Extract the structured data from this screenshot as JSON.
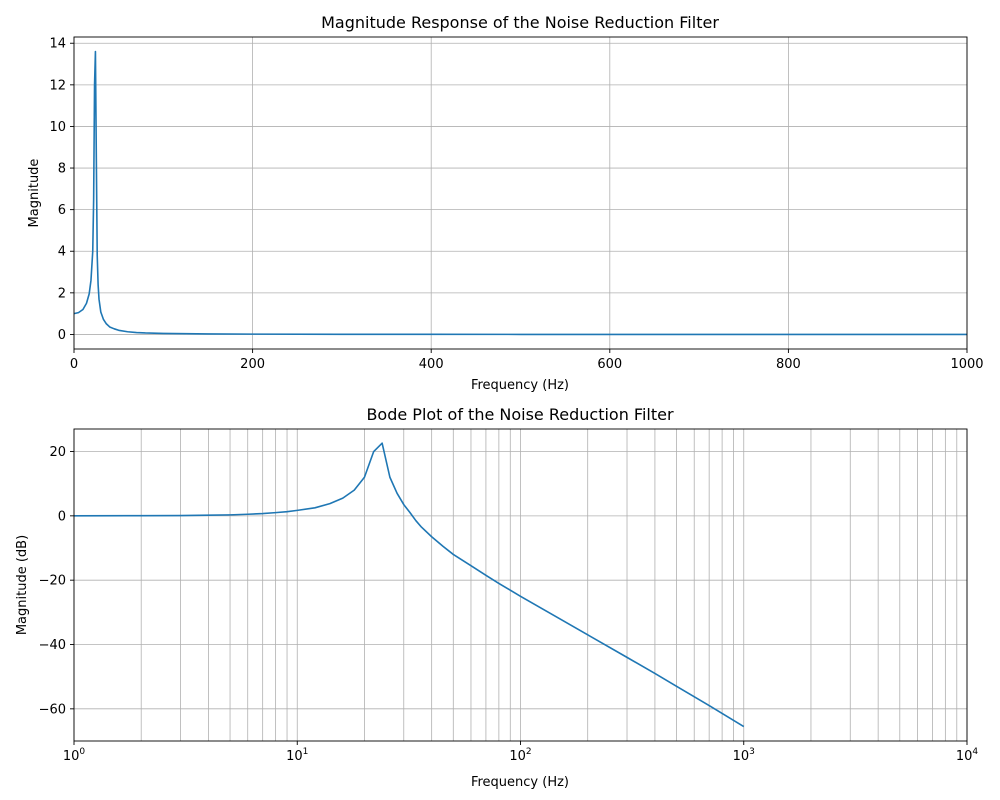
{
  "chart_data": [
    {
      "type": "line",
      "title": "Magnitude Response of the Noise Reduction Filter",
      "xlabel": "Frequency (Hz)",
      "ylabel": "Magnitude",
      "xscale": "linear",
      "xlim": [
        0,
        1000
      ],
      "ylim": [
        -0.7,
        14.3
      ],
      "xticks": [
        0,
        200,
        400,
        600,
        800,
        1000
      ],
      "xtick_labels": [
        "0",
        "200",
        "400",
        "600",
        "800",
        "1000"
      ],
      "yticks": [
        0,
        2,
        4,
        6,
        8,
        10,
        12,
        14
      ],
      "ytick_labels": [
        "0",
        "2",
        "4",
        "6",
        "8",
        "10",
        "12",
        "14"
      ],
      "grid": true,
      "color": "#1f77b4",
      "series": [
        {
          "x": [
            0,
            5,
            10,
            14,
            17,
            19,
            21,
            22,
            23,
            24,
            25,
            26,
            27,
            28,
            30,
            33,
            36,
            40,
            45,
            50,
            60,
            70,
            80,
            100,
            150,
            200,
            300,
            400,
            500,
            600,
            700,
            800,
            900,
            1000
          ],
          "values": [
            1.0,
            1.05,
            1.2,
            1.5,
            1.95,
            2.6,
            4.0,
            6.5,
            12.0,
            13.6,
            8.5,
            3.8,
            2.4,
            1.7,
            1.08,
            0.72,
            0.52,
            0.36,
            0.27,
            0.2,
            0.13,
            0.09,
            0.07,
            0.05,
            0.025,
            0.015,
            0.007,
            0.004,
            0.0025,
            0.0017,
            0.0013,
            0.001,
            0.0008,
            0.0006
          ]
        }
      ]
    },
    {
      "type": "line",
      "title": "Bode Plot of the Noise Reduction Filter",
      "xlabel": "Frequency (Hz)",
      "ylabel": "Magnitude (dB)",
      "xscale": "log",
      "xlim": [
        1,
        10000
      ],
      "ylim": [
        -70,
        27
      ],
      "xticks": [
        1,
        10,
        100,
        1000,
        10000
      ],
      "xtick_labels": [
        {
          "base": "10",
          "exp": "0"
        },
        {
          "base": "10",
          "exp": "1"
        },
        {
          "base": "10",
          "exp": "2"
        },
        {
          "base": "10",
          "exp": "3"
        },
        {
          "base": "10",
          "exp": "4"
        }
      ],
      "yticks": [
        -60,
        -40,
        -20,
        0,
        20
      ],
      "ytick_labels": [
        "−60",
        "−40",
        "−20",
        "0",
        "20"
      ],
      "grid": true,
      "color": "#1f77b4",
      "series": [
        {
          "x": [
            1,
            2,
            3,
            4,
            5,
            6,
            7,
            8,
            9,
            10,
            12,
            14,
            16,
            18,
            20,
            22,
            24,
            26,
            28,
            30,
            32,
            34,
            36,
            40,
            45,
            50,
            60,
            70,
            80,
            100,
            150,
            200,
            300,
            400,
            500,
            700,
            1000
          ],
          "values": [
            0.0,
            0.05,
            0.1,
            0.2,
            0.3,
            0.5,
            0.7,
            1.0,
            1.3,
            1.7,
            2.5,
            3.8,
            5.5,
            8.0,
            12.0,
            20.0,
            22.6,
            12.0,
            7.0,
            3.5,
            1.0,
            -1.5,
            -3.5,
            -6.5,
            -9.5,
            -12.0,
            -15.5,
            -18.5,
            -21.0,
            -25.0,
            -32.0,
            -37.0,
            -44.0,
            -49.0,
            -53.0,
            -59.0,
            -65.5
          ]
        }
      ]
    }
  ]
}
